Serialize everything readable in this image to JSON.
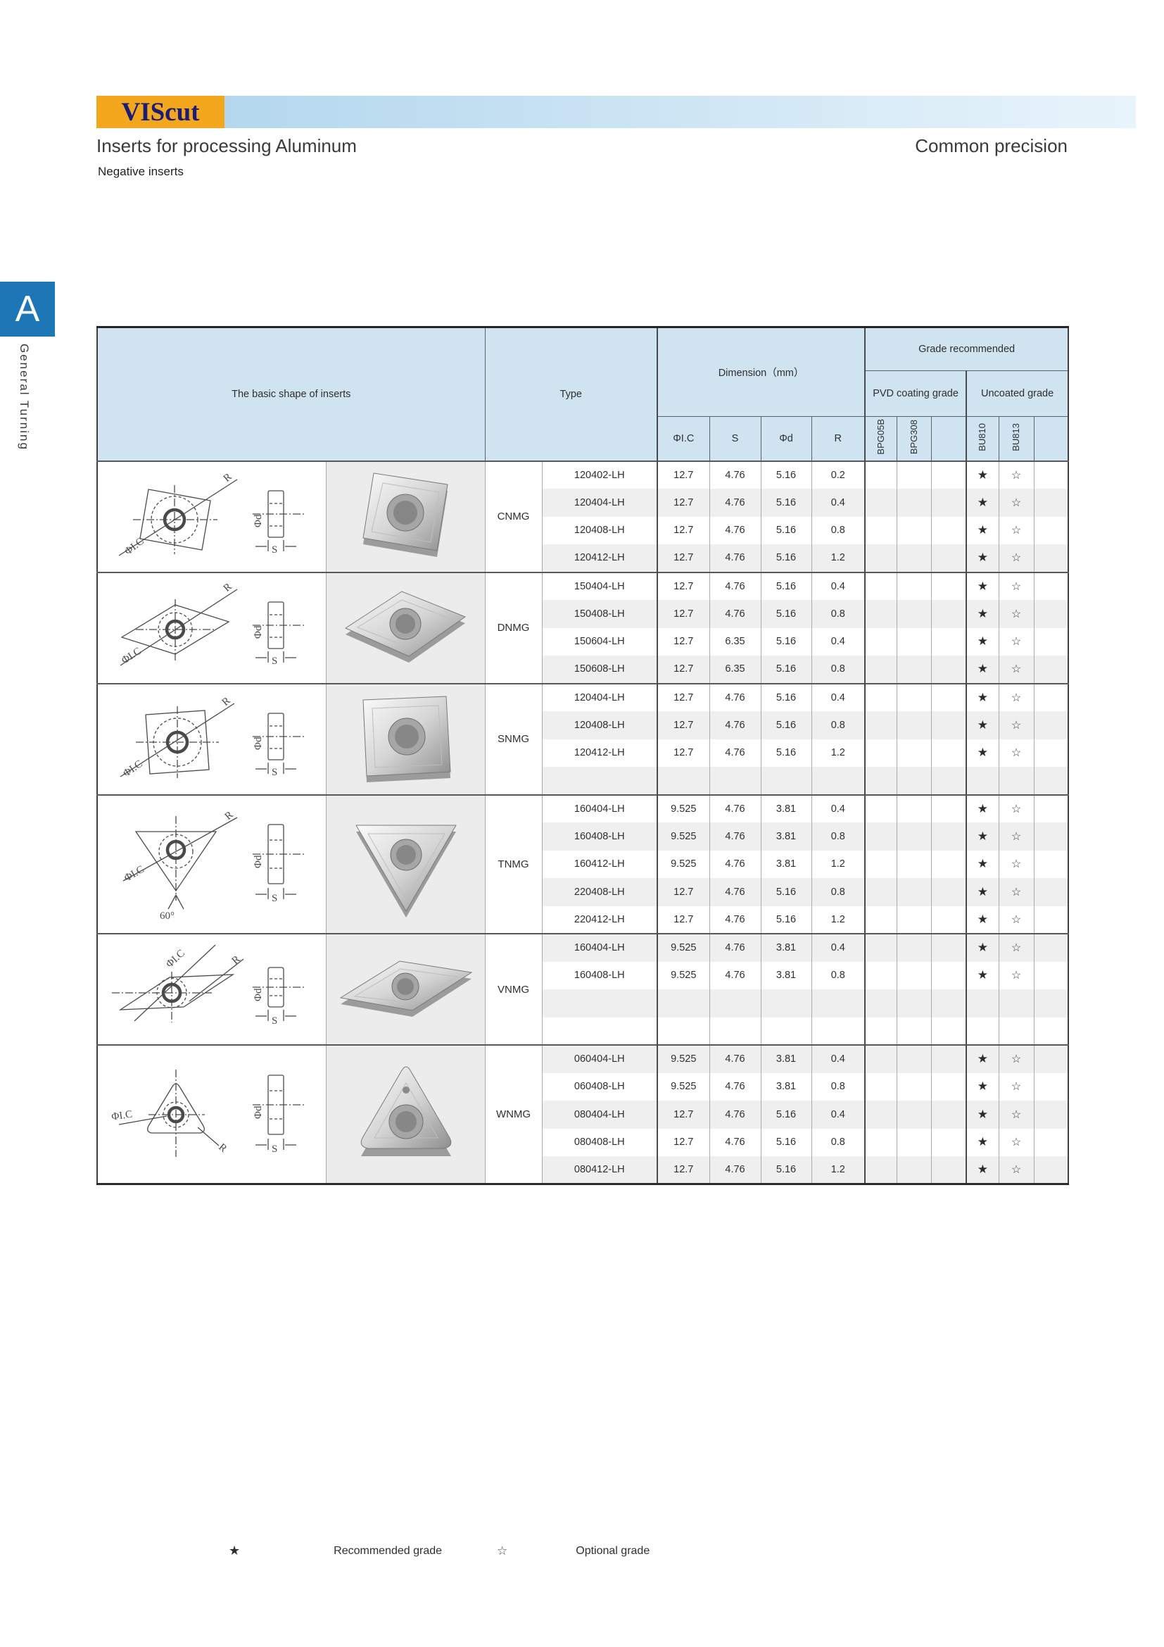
{
  "page": {
    "logo_text": "VIScut",
    "title": "Inserts  for processing Aluminum",
    "title_right": "Common precision",
    "section_label": "Negative inserts",
    "sidebar": {
      "tab_letter": "A",
      "tab_label": "General  Turning"
    },
    "legend": {
      "recommended_symbol": "★",
      "recommended_label": "Recommended grade",
      "optional_symbol": "☆",
      "optional_label": "Optional grade"
    },
    "colors": {
      "accent_orange": "#f2a71d",
      "logo_navy": "#1b1b78",
      "header_blue": "#cfe3f1",
      "sidebar_blue": "#1d76b5",
      "alt_row_gray": "#efefef"
    }
  },
  "table": {
    "headers": {
      "shape": "The basic shape of inserts",
      "type": "Type",
      "dimension": "Dimension（mm）",
      "dim_cols": [
        "ΦI.C",
        "S",
        "Φd",
        "R"
      ],
      "grade": "Grade recommended",
      "grade_groups": [
        {
          "label": "PVD coating grade",
          "cols": [
            "BPG05B",
            "BPG308",
            ""
          ]
        },
        {
          "label": "Uncoated grade",
          "cols": [
            "BU810",
            "BU813",
            ""
          ]
        }
      ]
    },
    "groups": [
      {
        "name": "CNMG",
        "shape": "cnmg",
        "rows": [
          {
            "type": "120402-LH",
            "ic": "12.7",
            "s": "4.76",
            "d": "5.16",
            "r": "0.2",
            "grades": [
              "",
              "",
              "",
              "★",
              "☆",
              ""
            ]
          },
          {
            "type": "120404-LH",
            "ic": "12.7",
            "s": "4.76",
            "d": "5.16",
            "r": "0.4",
            "grades": [
              "",
              "",
              "",
              "★",
              "☆",
              ""
            ]
          },
          {
            "type": "120408-LH",
            "ic": "12.7",
            "s": "4.76",
            "d": "5.16",
            "r": "0.8",
            "grades": [
              "",
              "",
              "",
              "★",
              "☆",
              ""
            ]
          },
          {
            "type": "120412-LH",
            "ic": "12.7",
            "s": "4.76",
            "d": "5.16",
            "r": "1.2",
            "grades": [
              "",
              "",
              "",
              "★",
              "☆",
              ""
            ]
          }
        ]
      },
      {
        "name": "DNMG",
        "shape": "dnmg",
        "rows": [
          {
            "type": "150404-LH",
            "ic": "12.7",
            "s": "4.76",
            "d": "5.16",
            "r": "0.4",
            "grades": [
              "",
              "",
              "",
              "★",
              "☆",
              ""
            ]
          },
          {
            "type": "150408-LH",
            "ic": "12.7",
            "s": "4.76",
            "d": "5.16",
            "r": "0.8",
            "grades": [
              "",
              "",
              "",
              "★",
              "☆",
              ""
            ]
          },
          {
            "type": "150604-LH",
            "ic": "12.7",
            "s": "6.35",
            "d": "5.16",
            "r": "0.4",
            "grades": [
              "",
              "",
              "",
              "★",
              "☆",
              ""
            ]
          },
          {
            "type": "150608-LH",
            "ic": "12.7",
            "s": "6.35",
            "d": "5.16",
            "r": "0.8",
            "grades": [
              "",
              "",
              "",
              "★",
              "☆",
              ""
            ]
          }
        ]
      },
      {
        "name": "SNMG",
        "shape": "snmg",
        "rows": [
          {
            "type": "120404-LH",
            "ic": "12.7",
            "s": "4.76",
            "d": "5.16",
            "r": "0.4",
            "grades": [
              "",
              "",
              "",
              "★",
              "☆",
              ""
            ]
          },
          {
            "type": "120408-LH",
            "ic": "12.7",
            "s": "4.76",
            "d": "5.16",
            "r": "0.8",
            "grades": [
              "",
              "",
              "",
              "★",
              "☆",
              ""
            ]
          },
          {
            "type": "120412-LH",
            "ic": "12.7",
            "s": "4.76",
            "d": "5.16",
            "r": "1.2",
            "grades": [
              "",
              "",
              "",
              "★",
              "☆",
              ""
            ]
          },
          {
            "type": "",
            "ic": "",
            "s": "",
            "d": "",
            "r": "",
            "grades": [
              "",
              "",
              "",
              "",
              "",
              ""
            ]
          }
        ]
      },
      {
        "name": "TNMG",
        "shape": "tnmg",
        "rows": [
          {
            "type": "160404-LH",
            "ic": "9.525",
            "s": "4.76",
            "d": "3.81",
            "r": "0.4",
            "grades": [
              "",
              "",
              "",
              "★",
              "☆",
              ""
            ]
          },
          {
            "type": "160408-LH",
            "ic": "9.525",
            "s": "4.76",
            "d": "3.81",
            "r": "0.8",
            "grades": [
              "",
              "",
              "",
              "★",
              "☆",
              ""
            ]
          },
          {
            "type": "160412-LH",
            "ic": "9.525",
            "s": "4.76",
            "d": "3.81",
            "r": "1.2",
            "grades": [
              "",
              "",
              "",
              "★",
              "☆",
              ""
            ]
          },
          {
            "type": "220408-LH",
            "ic": "12.7",
            "s": "4.76",
            "d": "5.16",
            "r": "0.8",
            "grades": [
              "",
              "",
              "",
              "★",
              "☆",
              ""
            ]
          },
          {
            "type": "220412-LH",
            "ic": "12.7",
            "s": "4.76",
            "d": "5.16",
            "r": "1.2",
            "grades": [
              "",
              "",
              "",
              "★",
              "☆",
              ""
            ]
          }
        ]
      },
      {
        "name": "VNMG",
        "shape": "vnmg",
        "rows": [
          {
            "type": "160404-LH",
            "ic": "9.525",
            "s": "4.76",
            "d": "3.81",
            "r": "0.4",
            "grades": [
              "",
              "",
              "",
              "★",
              "☆",
              ""
            ]
          },
          {
            "type": "160408-LH",
            "ic": "9.525",
            "s": "4.76",
            "d": "3.81",
            "r": "0.8",
            "grades": [
              "",
              "",
              "",
              "★",
              "☆",
              ""
            ]
          },
          {
            "type": "",
            "ic": "",
            "s": "",
            "d": "",
            "r": "",
            "grades": [
              "",
              "",
              "",
              "",
              "",
              ""
            ]
          },
          {
            "type": "",
            "ic": "",
            "s": "",
            "d": "",
            "r": "",
            "grades": [
              "",
              "",
              "",
              "",
              "",
              ""
            ]
          }
        ]
      },
      {
        "name": "WNMG",
        "shape": "wnmg",
        "rows": [
          {
            "type": "060404-LH",
            "ic": "9.525",
            "s": "4.76",
            "d": "3.81",
            "r": "0.4",
            "grades": [
              "",
              "",
              "",
              "★",
              "☆",
              ""
            ]
          },
          {
            "type": "060408-LH",
            "ic": "9.525",
            "s": "4.76",
            "d": "3.81",
            "r": "0.8",
            "grades": [
              "",
              "",
              "",
              "★",
              "☆",
              ""
            ]
          },
          {
            "type": "080404-LH",
            "ic": "12.7",
            "s": "4.76",
            "d": "5.16",
            "r": "0.4",
            "grades": [
              "",
              "",
              "",
              "★",
              "☆",
              ""
            ]
          },
          {
            "type": "080408-LH",
            "ic": "12.7",
            "s": "4.76",
            "d": "5.16",
            "r": "0.8",
            "grades": [
              "",
              "",
              "",
              "★",
              "☆",
              ""
            ]
          },
          {
            "type": "080412-LH",
            "ic": "12.7",
            "s": "4.76",
            "d": "5.16",
            "r": "1.2",
            "grades": [
              "",
              "",
              "",
              "★",
              "☆",
              ""
            ]
          }
        ]
      }
    ]
  }
}
